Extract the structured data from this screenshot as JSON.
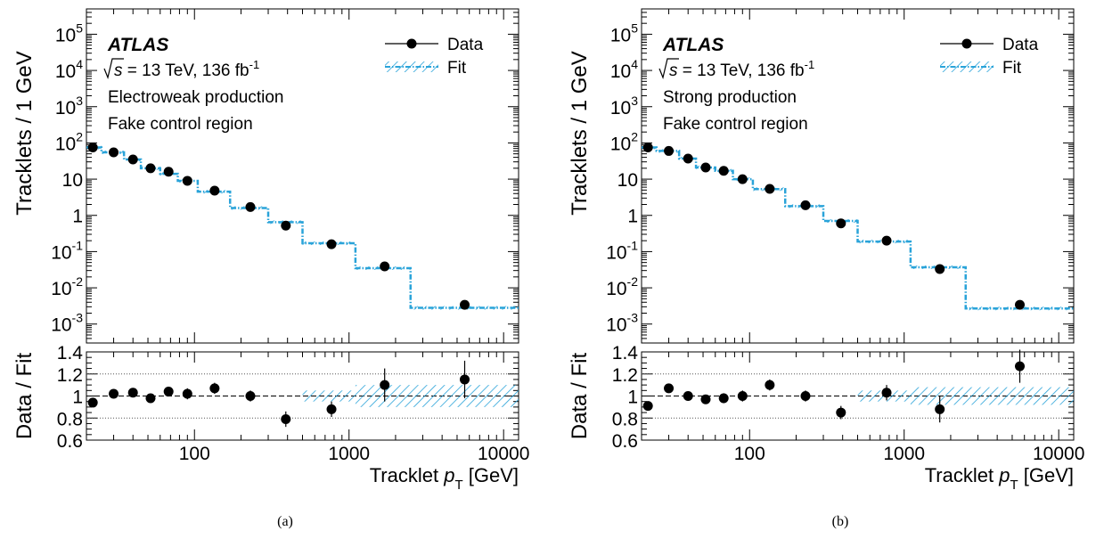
{
  "figure": {
    "width_label": ""
  },
  "colors": {
    "data": "#000000",
    "fit": "#29a3d9",
    "grid": "#555555"
  },
  "chart_data": [
    {
      "type": "line",
      "caption": "(a)",
      "experiment": "ATLAS",
      "energy_line": {
        "sqrt": "s",
        "rest": " = 13 TeV, 136 fb",
        "sup": "-1"
      },
      "annotations": [
        "Electroweak production",
        "Fake control region"
      ],
      "legend": {
        "data_label": "Data",
        "fit_label": "Fit",
        "placement": "top-right"
      },
      "ylabel": "Tracklets / 1 GeV",
      "ratio_ylabel": "Data / Fit",
      "xlabel": {
        "main": "Tracklet ",
        "var": "p",
        "sub": "T",
        "unit": " [GeV]"
      },
      "x_scale": "log",
      "xlim": [
        20,
        12500
      ],
      "ylim": [
        0.0003,
        500000
      ],
      "y_scale": "log",
      "yticks": [
        {
          "v": 0.001,
          "m": "10",
          "e": "-3"
        },
        {
          "v": 0.01,
          "m": "10",
          "e": "-2"
        },
        {
          "v": 0.1,
          "m": "10",
          "e": "-1"
        },
        {
          "v": 1,
          "m": "1",
          "e": ""
        },
        {
          "v": 10,
          "m": "10",
          "e": ""
        },
        {
          "v": 100,
          "m": "10",
          "e": "2"
        },
        {
          "v": 1000,
          "m": "10",
          "e": "3"
        },
        {
          "v": 10000,
          "m": "10",
          "e": "4"
        },
        {
          "v": 100000,
          "m": "10",
          "e": "5"
        }
      ],
      "xticks": [
        {
          "v": 100,
          "l": "100"
        },
        {
          "v": 1000,
          "l": "1000"
        },
        {
          "v": 10000,
          "l": "10000"
        }
      ],
      "ratio_ylim": [
        0.6,
        1.4
      ],
      "ratio_yticks": [
        {
          "v": 0.6,
          "l": "0.6"
        },
        {
          "v": 0.8,
          "l": "0.8"
        },
        {
          "v": 1.0,
          "l": "1"
        },
        {
          "v": 1.2,
          "l": "1.2"
        },
        {
          "v": 1.4,
          "l": "1.4"
        }
      ],
      "ratio_gridlines": [
        0.8,
        1.0,
        1.2
      ],
      "fit_bins": [
        20,
        25,
        35,
        45,
        60,
        78,
        105,
        170,
        300,
        500,
        1100,
        2500,
        12500
      ],
      "fit_values": [
        75,
        55,
        35,
        20,
        14,
        9,
        4.5,
        1.6,
        0.65,
        0.17,
        0.035,
        0.0028
      ],
      "fit_ratio_band_start": 500,
      "fit_ratio_band": [
        {
          "x0": 500,
          "x1": 1100,
          "lo": 0.95,
          "hi": 1.05
        },
        {
          "x0": 1100,
          "x1": 12500,
          "lo": 0.9,
          "hi": 1.1
        }
      ],
      "data": {
        "x": [
          22,
          30,
          40,
          52,
          68,
          90,
          135,
          230,
          390,
          770,
          1700,
          5600
        ],
        "y": [
          75,
          55,
          35,
          20,
          16,
          9,
          4.8,
          1.7,
          0.52,
          0.16,
          0.039,
          0.0034
        ],
        "ratio": [
          0.94,
          1.02,
          1.03,
          0.98,
          1.04,
          1.02,
          1.07,
          1.0,
          0.79,
          0.88,
          1.1,
          1.15
        ],
        "ratio_err": [
          0.03,
          0.035,
          0.035,
          0.04,
          0.045,
          0.05,
          0.05,
          0.05,
          0.07,
          0.07,
          0.15,
          0.17
        ]
      }
    },
    {
      "type": "line",
      "caption": "(b)",
      "experiment": "ATLAS",
      "energy_line": {
        "sqrt": "s",
        "rest": " = 13 TeV, 136 fb",
        "sup": "-1"
      },
      "annotations": [
        "Strong production",
        "Fake control region"
      ],
      "legend": {
        "data_label": "Data",
        "fit_label": "Fit",
        "placement": "top-right"
      },
      "ylabel": "Tracklets / 1 GeV",
      "ratio_ylabel": "Data / Fit",
      "xlabel": {
        "main": "Tracklet ",
        "var": "p",
        "sub": "T",
        "unit": " [GeV]"
      },
      "x_scale": "log",
      "xlim": [
        20,
        12500
      ],
      "ylim": [
        0.0003,
        500000
      ],
      "y_scale": "log",
      "yticks": [
        {
          "v": 0.001,
          "m": "10",
          "e": "-3"
        },
        {
          "v": 0.01,
          "m": "10",
          "e": "-2"
        },
        {
          "v": 0.1,
          "m": "10",
          "e": "-1"
        },
        {
          "v": 1,
          "m": "1",
          "e": ""
        },
        {
          "v": 10,
          "m": "10",
          "e": ""
        },
        {
          "v": 100,
          "m": "10",
          "e": "2"
        },
        {
          "v": 1000,
          "m": "10",
          "e": "3"
        },
        {
          "v": 10000,
          "m": "10",
          "e": "4"
        },
        {
          "v": 100000,
          "m": "10",
          "e": "5"
        }
      ],
      "xticks": [
        {
          "v": 100,
          "l": "100"
        },
        {
          "v": 1000,
          "l": "1000"
        },
        {
          "v": 10000,
          "l": "10000"
        }
      ],
      "ratio_ylim": [
        0.6,
        1.4
      ],
      "ratio_yticks": [
        {
          "v": 0.6,
          "l": "0.6"
        },
        {
          "v": 0.8,
          "l": "0.8"
        },
        {
          "v": 1.0,
          "l": "1"
        },
        {
          "v": 1.2,
          "l": "1.2"
        },
        {
          "v": 1.4,
          "l": "1.4"
        }
      ],
      "ratio_gridlines": [
        0.8,
        1.0,
        1.2
      ],
      "fit_bins": [
        20,
        25,
        35,
        45,
        60,
        78,
        105,
        170,
        300,
        500,
        1100,
        2500,
        12500
      ],
      "fit_values": [
        75,
        60,
        37,
        21,
        17,
        10,
        5.3,
        1.8,
        0.7,
        0.19,
        0.037,
        0.0027
      ],
      "fit_ratio_band_start": 500,
      "fit_ratio_band": [
        {
          "x0": 500,
          "x1": 1100,
          "lo": 0.95,
          "hi": 1.05
        },
        {
          "x0": 1100,
          "x1": 12500,
          "lo": 0.92,
          "hi": 1.08
        }
      ],
      "data": {
        "x": [
          22,
          30,
          40,
          52,
          68,
          90,
          135,
          230,
          390,
          770,
          1700,
          5600
        ],
        "y": [
          75,
          60,
          37,
          21,
          17,
          10,
          5.4,
          1.9,
          0.6,
          0.2,
          0.033,
          0.0034
        ],
        "ratio": [
          0.91,
          1.07,
          1.0,
          0.97,
          0.98,
          1.0,
          1.1,
          1.0,
          0.85,
          1.03,
          0.88,
          1.27
        ],
        "ratio_err": [
          0.03,
          0.035,
          0.035,
          0.04,
          0.045,
          0.05,
          0.05,
          0.05,
          0.06,
          0.07,
          0.12,
          0.15
        ]
      }
    }
  ]
}
